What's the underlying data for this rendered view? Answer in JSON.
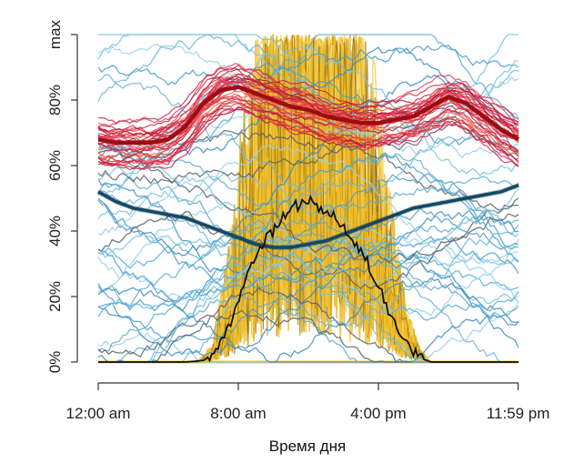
{
  "chart_data": {
    "type": "line",
    "title": "",
    "xlabel": "Время дня",
    "ylabel": "",
    "x_ticks": [
      "12:00 am",
      "8:00 am",
      "4:00 pm",
      "11:59 pm"
    ],
    "y_ticks": [
      "0%",
      "20%",
      "40%",
      "60%",
      "80%",
      "max"
    ],
    "xlim": [
      0,
      24
    ],
    "ylim": [
      0,
      100
    ],
    "grid": false,
    "legend": "none",
    "colors": {
      "sunny_band": "#f2c12e",
      "sunny_dark": "#8a6a12",
      "solar_mean": "#111111",
      "red_lines": "#d81d3c",
      "red_mean": "#9b0d12",
      "blue_lines": "#5aaed6",
      "blue_mean": "#0d4a66",
      "grey_lines": "#5a6470"
    },
    "series": [
      {
        "key": "solar_mean",
        "x": [
          0,
          5,
          6,
          6.5,
          7,
          7.5,
          8,
          8.5,
          9,
          9.5,
          10,
          10.5,
          11,
          11.5,
          12,
          12.5,
          13,
          13.5,
          14,
          14.5,
          15,
          15.5,
          16,
          16.5,
          17,
          17.5,
          18,
          18.5,
          19,
          24
        ],
        "y": [
          0,
          0,
          0.5,
          2,
          6,
          11,
          18,
          26,
          33,
          37,
          40,
          44,
          47,
          48,
          50,
          48,
          46,
          44,
          41,
          38,
          34,
          29,
          23,
          17,
          11,
          6,
          3,
          1,
          0,
          0
        ]
      },
      {
        "key": "red_mean",
        "x": [
          0,
          1,
          2,
          3,
          4,
          5,
          6,
          7,
          8,
          9,
          10,
          11,
          12,
          13,
          14,
          15,
          16,
          17,
          18,
          19,
          20,
          21,
          22,
          23,
          24
        ],
        "y": [
          68,
          67,
          67,
          67,
          68,
          72,
          79,
          83,
          84,
          82,
          80,
          78,
          77,
          75,
          74,
          73,
          73,
          74,
          75,
          78,
          81,
          79,
          75,
          71,
          68
        ]
      },
      {
        "key": "blue_mean",
        "x": [
          0,
          1,
          2,
          3,
          4,
          5,
          6,
          7,
          8,
          9,
          10,
          11,
          12,
          13,
          14,
          15,
          16,
          17,
          18,
          19,
          20,
          21,
          22,
          23,
          24
        ],
        "y": [
          52,
          49,
          47,
          46,
          45,
          44,
          42,
          40,
          38,
          36,
          35,
          35,
          36,
          37,
          39,
          41,
          43,
          45,
          47,
          48,
          49,
          50,
          51,
          52,
          54
        ]
      }
    ]
  }
}
